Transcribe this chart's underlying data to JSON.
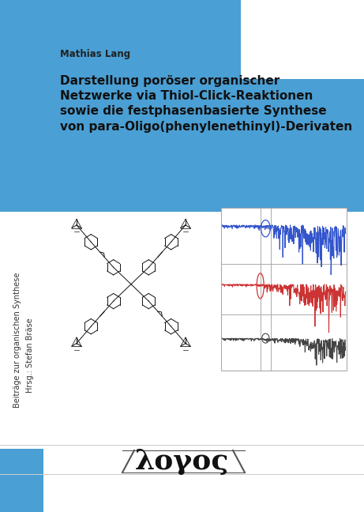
{
  "bg_color": "#ffffff",
  "blue_color": "#4a9fd4",
  "title_text": "Darstellung poröser organischer\nNetzwerke via Thiol-Click-Reaktionen\nsowie die festphasenbasierte Synthese\nvon para-Oligo(phenylenethinyl)-Derivaten",
  "author_text": "Mathias Lang",
  "series_line1": "Beiträge zur organischen Synthese",
  "series_line2": "Hrsg.: Stefan Bräse",
  "logo_text": "λογος"
}
